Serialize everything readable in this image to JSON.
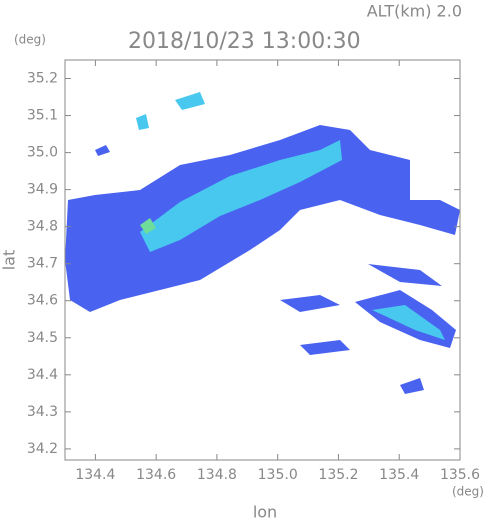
{
  "chart_data": {
    "type": "radar-map",
    "title": "2018/10/23 13:00:30",
    "subtitle": "ALT(km) 2.0",
    "y_unit": "(deg)",
    "x_unit": "(deg)",
    "xlabel": "lon",
    "ylabel": "lat",
    "xlim": [
      134.3,
      135.6
    ],
    "ylim": [
      34.17,
      35.25
    ],
    "xticks": [
      134.4,
      134.6,
      134.8,
      {
        "value": 135,
        "label": "135.0"
      },
      135.2,
      135.4,
      135.6
    ],
    "yticks": [
      34.2,
      34.3,
      34.4,
      34.5,
      34.6,
      34.7,
      34.8,
      34.9,
      {
        "value": 35,
        "label": "35.0"
      },
      35.1,
      35.2
    ]
  }
}
